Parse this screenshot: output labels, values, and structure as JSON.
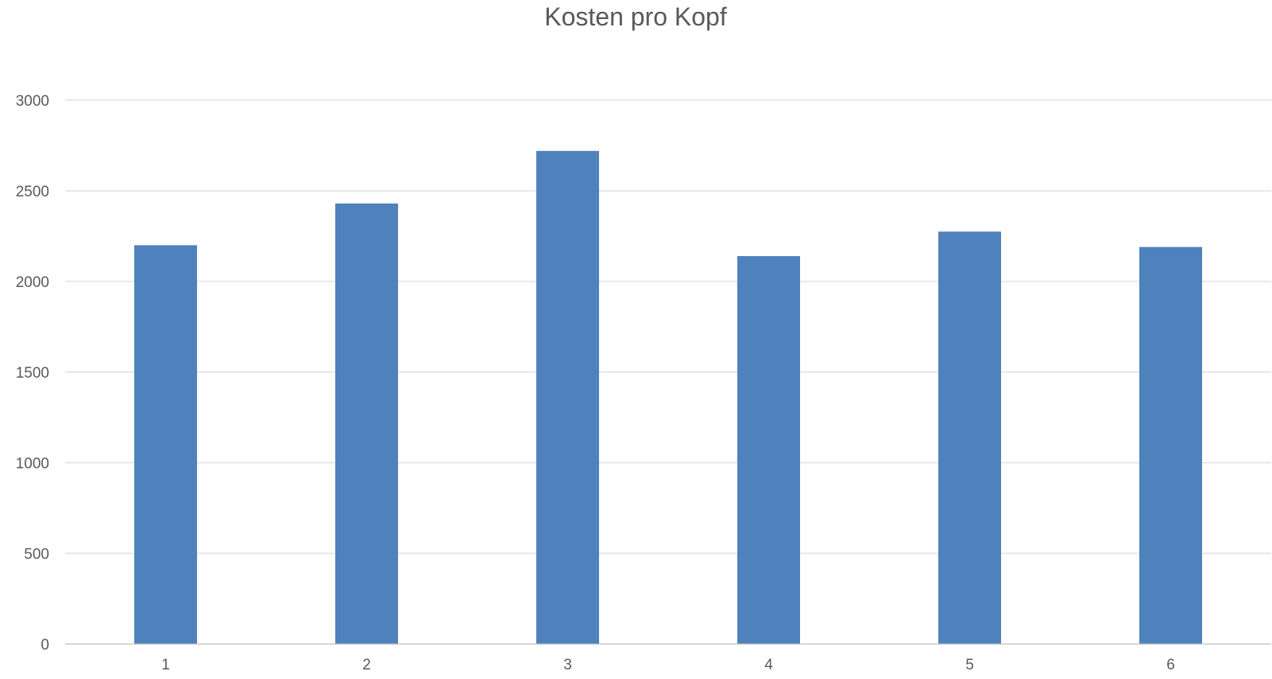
{
  "chart_data": {
    "type": "bar",
    "title": "Kosten pro Kopf",
    "xlabel": "",
    "ylabel": "",
    "categories": [
      "1",
      "2",
      "3",
      "4",
      "5",
      "6"
    ],
    "series": [
      {
        "values": [
          2200,
          2430,
          2720,
          2140,
          2275,
          2190
        ]
      }
    ],
    "ylim": [
      0,
      3000
    ],
    "yticks": [
      "0",
      "500",
      "1000",
      "1500",
      "2000",
      "2500",
      "3000"
    ],
    "grid": true,
    "legend": "none",
    "colors": {
      "bar": "#4f81bd"
    }
  }
}
